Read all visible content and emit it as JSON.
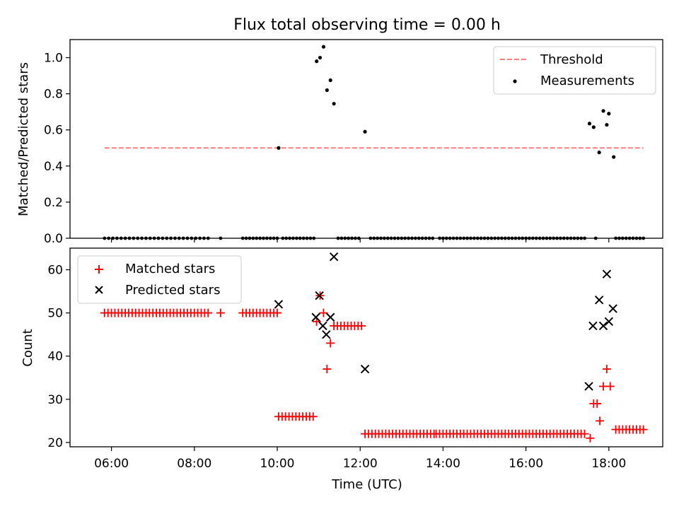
{
  "figure_title": "Flux total observing time = 0.00 h",
  "chart_data": [
    {
      "type": "line+scatter",
      "title": "Flux total observing time = 0.00 h",
      "ylabel": "Matched/Predicted stars",
      "xlabel": "",
      "ylim": [
        0,
        1.1
      ],
      "yticks": [
        "0.0",
        "0.2",
        "0.4",
        "0.6",
        "0.8",
        "1.0"
      ],
      "threshold": {
        "name": "Threshold",
        "color": "#ff7f7f",
        "value": 0.5,
        "x_range": [
          5.833,
          18.833
        ]
      },
      "measurements_name": "Measurements",
      "measurements_color": "#000000",
      "legend_position": "upper right",
      "zero_runs": [
        [
          5.833,
          8.333,
          0.1
        ],
        [
          9.167,
          10.0,
          0.0833
        ],
        [
          10.133,
          10.867,
          0.0833
        ],
        [
          11.467,
          12.0,
          0.0833
        ],
        [
          12.25,
          13.75,
          0.0833
        ],
        [
          13.917,
          17.417,
          0.0833
        ],
        [
          18.167,
          18.833,
          0.0833
        ]
      ],
      "zero_points": [
        8.633,
        17.683
      ],
      "points": [
        [
          10.033,
          0.5
        ],
        [
          10.95,
          0.98
        ],
        [
          11.033,
          1.0
        ],
        [
          11.117,
          1.06
        ],
        [
          11.2,
          0.82
        ],
        [
          11.283,
          0.875
        ],
        [
          11.367,
          0.745
        ],
        [
          12.117,
          0.59
        ],
        [
          17.533,
          0.635
        ],
        [
          17.633,
          0.615
        ],
        [
          17.767,
          0.475
        ],
        [
          17.867,
          0.705
        ],
        [
          17.95,
          0.628
        ],
        [
          18.0,
          0.69
        ],
        [
          18.117,
          0.45
        ]
      ]
    },
    {
      "type": "scatter",
      "title": "",
      "xlabel": "Time (UTC)",
      "ylabel": "Count",
      "ylim": [
        19,
        65
      ],
      "yticks": [
        "20",
        "30",
        "40",
        "50",
        "60"
      ],
      "xlim": [
        5.0,
        19.3
      ],
      "xticks": [
        "06:00",
        "08:00",
        "10:00",
        "12:00",
        "14:00",
        "16:00",
        "18:00"
      ],
      "legend_position": "upper left",
      "series": [
        {
          "name": "Matched stars",
          "marker": "plus",
          "color": "#ff0000",
          "runs": [
            [
              5.833,
              8.333,
              0.0833,
              50
            ],
            [
              9.167,
              10.0,
              0.0833,
              50
            ],
            [
              10.033,
              10.867,
              0.0833,
              26
            ],
            [
              11.367,
              12.033,
              0.0833,
              47
            ],
            [
              12.117,
              13.75,
              0.0833,
              22
            ],
            [
              13.833,
              17.417,
              0.0833,
              22
            ],
            [
              18.167,
              18.833,
              0.0833,
              23
            ]
          ],
          "points": [
            [
              8.633,
              50
            ],
            [
              10.95,
              48
            ],
            [
              11.033,
              54
            ],
            [
              11.117,
              50
            ],
            [
              11.2,
              37
            ],
            [
              11.283,
              43
            ],
            [
              17.55,
              21
            ],
            [
              17.633,
              29
            ],
            [
              17.717,
              29
            ],
            [
              17.783,
              25
            ],
            [
              17.867,
              33
            ],
            [
              17.95,
              37
            ],
            [
              18.033,
              33
            ]
          ]
        },
        {
          "name": "Predicted stars",
          "marker": "x",
          "color": "#000000",
          "points": [
            [
              10.033,
              52
            ],
            [
              10.933,
              49
            ],
            [
              11.017,
              54
            ],
            [
              11.1,
              47
            ],
            [
              11.183,
              45
            ],
            [
              11.283,
              49
            ],
            [
              11.367,
              63
            ],
            [
              12.117,
              37
            ],
            [
              17.517,
              33
            ],
            [
              17.617,
              47
            ],
            [
              17.767,
              53
            ],
            [
              17.867,
              47
            ],
            [
              17.95,
              59
            ],
            [
              18.0,
              48
            ],
            [
              18.1,
              51
            ]
          ]
        }
      ]
    }
  ]
}
